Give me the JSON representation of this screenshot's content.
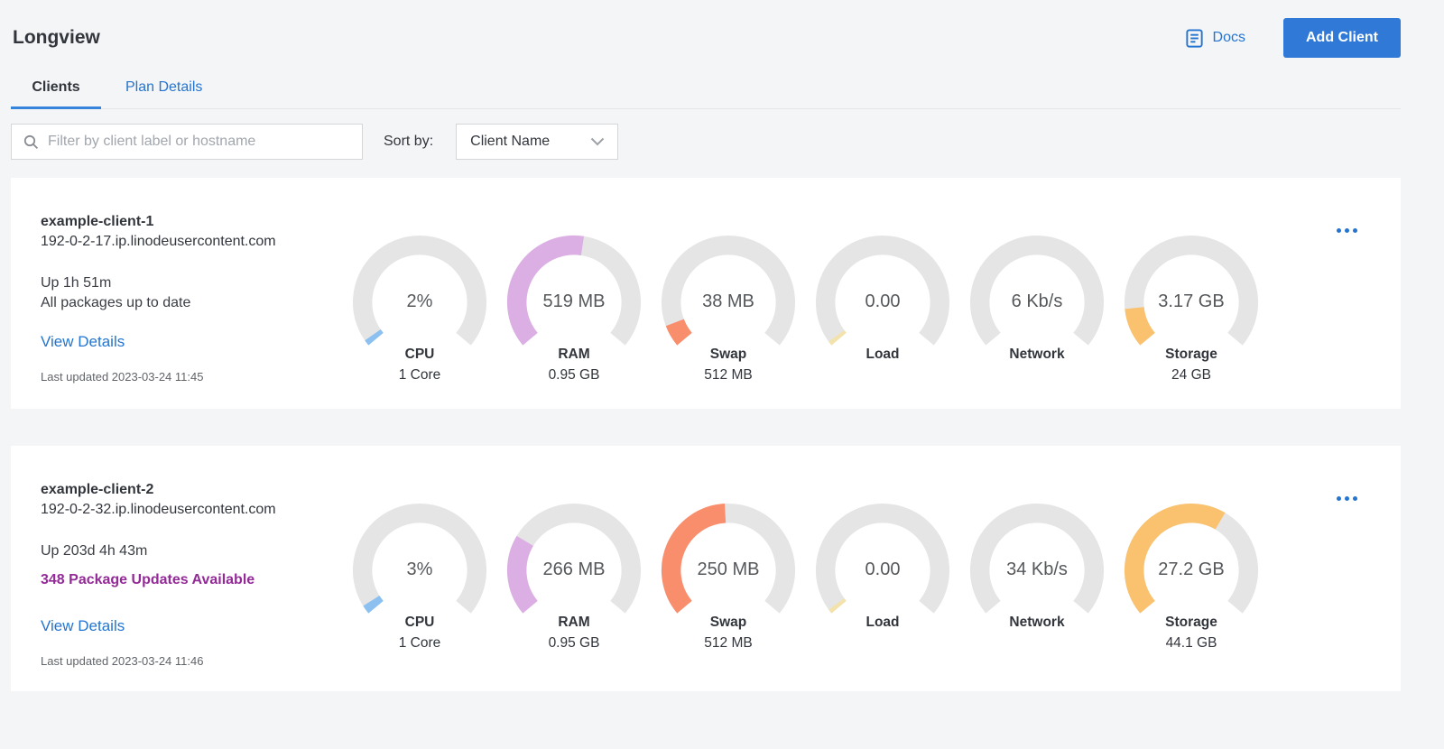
{
  "page": {
    "title": "Longview",
    "docs_label": "Docs",
    "add_client_label": "Add Client",
    "tabs": [
      {
        "label": "Clients",
        "active": true
      },
      {
        "label": "Plan Details",
        "active": false
      }
    ],
    "filter": {
      "placeholder": "Filter by client label or hostname"
    },
    "sort": {
      "label": "Sort by:",
      "value": "Client Name"
    }
  },
  "colors": {
    "link_blue": "#2575d0",
    "button_blue": "#3079d6",
    "tab_underline": "#3683dc",
    "gauge_track": "#e5e5e6",
    "cpu": "#8cc0f1",
    "ram": "#dcafe4",
    "swap": "#f98e6d",
    "load": "#f3e2a9",
    "storage": "#fac26e",
    "package_alert": "#932a97"
  },
  "clients": [
    {
      "name": "example-client-1",
      "hostname": "192-0-2-17.ip.linodeusercontent.com",
      "uptime": "Up 1h 51m",
      "packages": "All packages up to date",
      "packages_alert": false,
      "view_details_label": "View Details",
      "last_updated": "Last updated 2023-03-24 11:45",
      "gauges": [
        {
          "metric": "CPU",
          "value": "2%",
          "sublabel": "1 Core",
          "fraction": 0.02,
          "color": "#8cc0f1"
        },
        {
          "metric": "RAM",
          "value": "519 MB",
          "sublabel": "0.95 GB",
          "fraction": 0.533,
          "color": "#dcafe4"
        },
        {
          "metric": "Swap",
          "value": "38 MB",
          "sublabel": "512 MB",
          "fraction": 0.074,
          "color": "#f98e6d"
        },
        {
          "metric": "Load",
          "value": "0.00",
          "sublabel": "",
          "fraction": 0.015,
          "color": "#f3e2a9"
        },
        {
          "metric": "Network",
          "value": "6 Kb/s",
          "sublabel": "",
          "fraction": 0,
          "color": "#f3e2a9"
        },
        {
          "metric": "Storage",
          "value": "3.17 GB",
          "sublabel": "24 GB",
          "fraction": 0.132,
          "color": "#fac26e"
        }
      ]
    },
    {
      "name": "example-client-2",
      "hostname": "192-0-2-32.ip.linodeusercontent.com",
      "uptime": "Up 203d 4h 43m",
      "packages": "348 Package Updates Available",
      "packages_alert": true,
      "view_details_label": "View Details",
      "last_updated": "Last updated 2023-03-24 11:46",
      "gauges": [
        {
          "metric": "CPU",
          "value": "3%",
          "sublabel": "1 Core",
          "fraction": 0.03,
          "color": "#8cc0f1"
        },
        {
          "metric": "RAM",
          "value": "266 MB",
          "sublabel": "0.95 GB",
          "fraction": 0.273,
          "color": "#dcafe4"
        },
        {
          "metric": "Swap",
          "value": "250 MB",
          "sublabel": "512 MB",
          "fraction": 0.488,
          "color": "#f98e6d"
        },
        {
          "metric": "Load",
          "value": "0.00",
          "sublabel": "",
          "fraction": 0.015,
          "color": "#f3e2a9"
        },
        {
          "metric": "Network",
          "value": "34 Kb/s",
          "sublabel": "",
          "fraction": 0,
          "color": "#f3e2a9"
        },
        {
          "metric": "Storage",
          "value": "27.2 GB",
          "sublabel": "44.1 GB",
          "fraction": 0.617,
          "color": "#fac26e"
        }
      ]
    }
  ]
}
